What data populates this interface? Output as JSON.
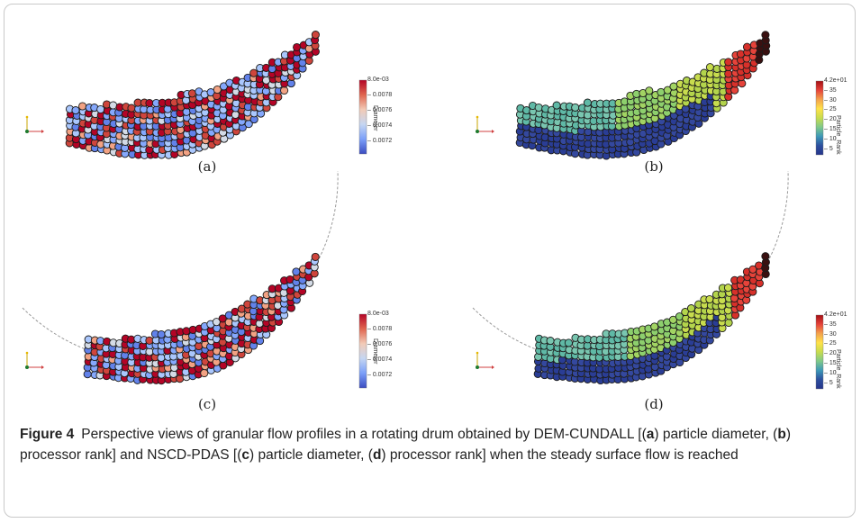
{
  "figure": {
    "label": "Figure 4",
    "caption_parts": [
      {
        "t": "Perspective views of granular flow profiles in a rotating drum obtained by DEM-CUNDALL [(",
        "b": false
      },
      {
        "t": "a",
        "b": true
      },
      {
        "t": ") particle diameter, (",
        "b": false
      },
      {
        "t": "b",
        "b": true
      },
      {
        "t": ") processor rank] and NSCD-PDAS [(",
        "b": false
      },
      {
        "t": "c",
        "b": true
      },
      {
        "t": ") particle diameter, (",
        "b": false
      },
      {
        "t": "d",
        "b": true
      },
      {
        "t": ") processor rank] when the steady surface flow is reached",
        "b": false
      }
    ]
  },
  "panels": [
    {
      "id": "a",
      "label": "(a)",
      "colormap": "diameter",
      "drum_arc": false,
      "colorbar": {
        "title": "Diameter",
        "ticks": [
          "8.0e-03",
          "0.0078",
          "0.0076",
          "0.0074",
          "0.0072"
        ],
        "colors": [
          "#b40426",
          "#e0654f",
          "#f2cbb7",
          "#c5d6f2",
          "#7b9ff9",
          "#3b4cc0"
        ]
      }
    },
    {
      "id": "b",
      "label": "(b)",
      "colormap": "rank",
      "drum_arc": false,
      "colorbar": {
        "title": "Particle_Rank",
        "ticks": [
          "4.2e+01",
          "35",
          "30",
          "25",
          "20",
          "15",
          "10",
          "5"
        ],
        "colors": [
          "#a50f15",
          "#e6433a",
          "#f4a24c",
          "#ffe24a",
          "#c8dc4e",
          "#7fc98a",
          "#3d98b8",
          "#2d4f9e",
          "#26358c"
        ]
      }
    },
    {
      "id": "c",
      "label": "(c)",
      "colormap": "diameter",
      "drum_arc": true,
      "colorbar": {
        "title": "Diameter",
        "ticks": [
          "8.0e-03",
          "0.0078",
          "0.0076",
          "0.0074",
          "0.0072"
        ],
        "colors": [
          "#b40426",
          "#e0654f",
          "#f2cbb7",
          "#c5d6f2",
          "#7b9ff9",
          "#3b4cc0"
        ]
      }
    },
    {
      "id": "d",
      "label": "(d)",
      "colormap": "rank",
      "drum_arc": true,
      "colorbar": {
        "title": "Particle_Rank",
        "ticks": [
          "4.2e+01",
          "35",
          "30",
          "25",
          "20",
          "15",
          "10",
          "5"
        ],
        "colors": [
          "#a50f15",
          "#e6433a",
          "#f4a24c",
          "#ffe24a",
          "#c8dc4e",
          "#7fc98a",
          "#3d98b8",
          "#2d4f9e",
          "#26358c"
        ]
      }
    }
  ]
}
